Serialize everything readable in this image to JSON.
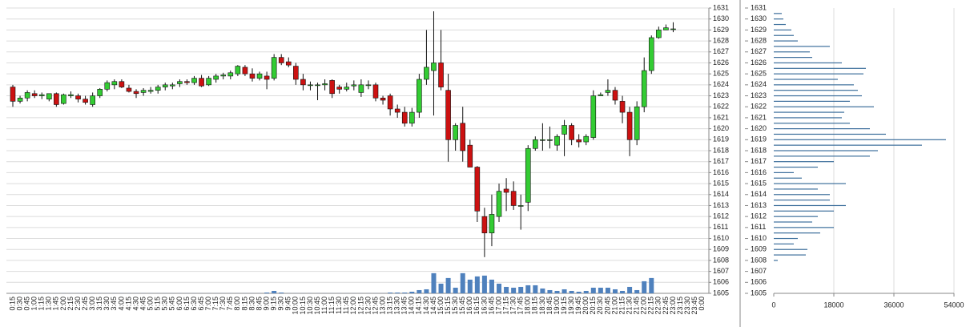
{
  "chart_data": [
    {
      "type": "candlestick",
      "categories": [
        "0:15",
        "0:30",
        "0:45",
        "1:00",
        "1:15",
        "1:30",
        "1:45",
        "2:00",
        "2:15",
        "2:30",
        "2:45",
        "3:00",
        "3:15",
        "3:30",
        "3:45",
        "4:00",
        "4:15",
        "4:30",
        "4:45",
        "5:00",
        "5:15",
        "5:30",
        "5:45",
        "6:00",
        "6:15",
        "6:30",
        "6:45",
        "7:00",
        "7:15",
        "7:30",
        "7:45",
        "8:00",
        "8:15",
        "8:30",
        "8:45",
        "9:00",
        "9:15",
        "9:30",
        "9:45",
        "10:00",
        "10:15",
        "10:30",
        "10:45",
        "11:00",
        "11:15",
        "11:30",
        "11:45",
        "12:00",
        "12:15",
        "12:30",
        "12:45",
        "13:00",
        "13:15",
        "13:30",
        "13:45",
        "14:00",
        "14:15",
        "14:30",
        "14:45",
        "15:00",
        "15:15",
        "15:30",
        "15:45",
        "16:00",
        "16:15",
        "16:30",
        "16:45",
        "17:00",
        "17:15",
        "17:30",
        "17:45",
        "18:00",
        "18:15",
        "18:30",
        "18:45",
        "19:00",
        "19:15",
        "19:30",
        "19:45",
        "20:00",
        "20:15",
        "20:30",
        "20:45",
        "21:00",
        "21:15",
        "21:30",
        "21:45",
        "22:00",
        "22:15",
        "22:30",
        "22:45",
        "23:00",
        "23:15",
        "23:30",
        "23:45",
        "0:00"
      ],
      "open": [
        1623.8,
        1622.5,
        1622.8,
        1623.2,
        1623.0,
        1622.7,
        1623.2,
        1622.3,
        1623.0,
        1623.0,
        1622.7,
        1622.2,
        1623.0,
        1623.6,
        1624.0,
        1624.3,
        1623.7,
        1623.4,
        1623.3,
        1623.4,
        1623.5,
        1623.8,
        1623.9,
        1624.1,
        1624.3,
        1624.2,
        1624.6,
        1624.0,
        1624.5,
        1624.8,
        1624.8,
        1625.0,
        1625.6,
        1625.0,
        1624.6,
        1624.8,
        1624.6,
        1626.5,
        1626.1,
        1625.7,
        1624.5,
        1624.0,
        1624.0,
        1624.0,
        1624.4,
        1623.8,
        1623.6,
        1623.9,
        1623.3,
        1624.0,
        1624.0,
        1622.8,
        1623.0,
        1621.8,
        1621.5,
        1620.5,
        1621.5,
        1624.5,
        1625.3,
        1626.0,
        1623.5,
        1619.0,
        1620.5,
        1618.5,
        1616.5,
        1612.0,
        1610.5,
        1612.0,
        1614.5,
        1614.3,
        1613.0,
        1613.3,
        1618.2,
        1619.0,
        1619.0,
        1618.5,
        1619.5,
        1620.3,
        1619.0,
        1618.8,
        1619.2,
        1623.0,
        1623.3,
        1623.5,
        1622.5,
        1621.5,
        1619.0,
        1622.0,
        1625.3,
        1628.3,
        1629.0,
        1629.1,
        null,
        null,
        null,
        null
      ],
      "high": [
        1624.0,
        1623.0,
        1623.5,
        1623.5,
        1623.3,
        1623.2,
        1623.3,
        1623.2,
        1623.4,
        1623.2,
        1623.0,
        1623.3,
        1623.7,
        1624.4,
        1624.5,
        1624.5,
        1624.0,
        1623.6,
        1623.7,
        1623.8,
        1624.0,
        1624.2,
        1624.2,
        1624.5,
        1624.5,
        1624.8,
        1624.9,
        1624.8,
        1625.0,
        1625.1,
        1625.3,
        1625.8,
        1625.8,
        1625.5,
        1625.2,
        1625.2,
        1626.8,
        1626.8,
        1626.5,
        1626.0,
        1625.0,
        1624.3,
        1624.2,
        1624.5,
        1624.5,
        1624.0,
        1624.2,
        1624.4,
        1624.5,
        1624.4,
        1624.2,
        1623.0,
        1623.2,
        1622.2,
        1622.0,
        1621.9,
        1625.0,
        1629.0,
        1630.7,
        1629.0,
        1625.0,
        1620.5,
        1622.0,
        1619.0,
        1616.6,
        1612.8,
        1614.0,
        1615.0,
        1615.5,
        1615.2,
        1614.0,
        1618.5,
        1619.3,
        1620.5,
        1620.2,
        1619.5,
        1620.8,
        1620.5,
        1619.5,
        1619.5,
        1623.5,
        1623.3,
        1624.5,
        1623.8,
        1623.0,
        1622.0,
        1622.5,
        1626.5,
        1628.5,
        1629.3,
        1629.5,
        1629.7,
        null,
        null,
        null,
        null
      ],
      "low": [
        1622.0,
        1622.3,
        1622.5,
        1622.8,
        1622.7,
        1622.5,
        1622.0,
        1622.2,
        1622.8,
        1622.4,
        1622.2,
        1622.0,
        1622.8,
        1623.4,
        1623.6,
        1623.7,
        1623.3,
        1622.8,
        1623.0,
        1623.2,
        1623.2,
        1623.5,
        1623.6,
        1623.8,
        1624.0,
        1624.0,
        1623.8,
        1623.9,
        1624.2,
        1624.5,
        1624.5,
        1624.8,
        1624.8,
        1624.3,
        1624.4,
        1623.6,
        1624.4,
        1625.8,
        1625.6,
        1624.0,
        1623.5,
        1623.5,
        1622.6,
        1623.5,
        1622.8,
        1623.2,
        1623.4,
        1623.5,
        1622.9,
        1623.6,
        1622.5,
        1622.2,
        1621.2,
        1621.0,
        1620.2,
        1620.2,
        1621.0,
        1624.0,
        1621.2,
        1623.5,
        1617.0,
        1618.0,
        1617.0,
        1616.5,
        1611.5,
        1608.3,
        1609.3,
        1611.5,
        1612.5,
        1612.6,
        1610.8,
        1612.5,
        1618.0,
        1618.0,
        1618.2,
        1618.0,
        1617.5,
        1618.5,
        1618.3,
        1618.5,
        1619.0,
        1623.0,
        1623.0,
        1622.2,
        1620.5,
        1617.5,
        1618.5,
        1621.5,
        1625.0,
        1628.2,
        1629.0,
        1628.8,
        null,
        null,
        null,
        null
      ],
      "close": [
        1622.5,
        1622.8,
        1623.3,
        1623.0,
        1623.1,
        1623.2,
        1622.2,
        1623.1,
        1623.1,
        1622.7,
        1622.4,
        1623.0,
        1623.6,
        1624.2,
        1624.3,
        1623.8,
        1623.4,
        1623.2,
        1623.5,
        1623.5,
        1623.8,
        1624.0,
        1624.0,
        1624.3,
        1624.2,
        1624.6,
        1623.9,
        1624.6,
        1624.8,
        1624.9,
        1625.1,
        1625.7,
        1625.0,
        1624.6,
        1625.0,
        1624.5,
        1626.5,
        1626.0,
        1625.8,
        1624.5,
        1624.0,
        1624.0,
        1624.0,
        1624.1,
        1623.2,
        1623.6,
        1623.8,
        1624.0,
        1624.0,
        1624.0,
        1622.8,
        1622.6,
        1621.8,
        1621.5,
        1620.5,
        1621.5,
        1624.5,
        1625.6,
        1626.0,
        1623.8,
        1619.0,
        1620.3,
        1618.0,
        1616.5,
        1612.5,
        1610.5,
        1612.2,
        1614.3,
        1614.2,
        1613.0,
        1613.0,
        1618.2,
        1619.0,
        1619.0,
        1619.0,
        1619.3,
        1620.3,
        1619.0,
        1618.8,
        1619.3,
        1623.0,
        1623.1,
        1623.5,
        1622.6,
        1621.5,
        1619.0,
        1622.0,
        1625.3,
        1628.3,
        1629.0,
        1629.2,
        1629.1,
        null,
        null,
        null,
        null
      ],
      "volume": [
        300,
        300,
        300,
        300,
        300,
        300,
        300,
        300,
        300,
        300,
        300,
        300,
        300,
        300,
        300,
        300,
        300,
        300,
        300,
        300,
        300,
        300,
        300,
        300,
        300,
        300,
        300,
        300,
        300,
        300,
        300,
        300,
        300,
        300,
        300,
        2400,
        7200,
        2400,
        300,
        300,
        300,
        300,
        300,
        300,
        300,
        300,
        300,
        300,
        300,
        300,
        300,
        300,
        2400,
        2400,
        2400,
        4800,
        9600,
        12000,
        60000,
        28800,
        45600,
        16800,
        60000,
        40800,
        50400,
        52800,
        40800,
        28800,
        19200,
        16800,
        19200,
        24000,
        24000,
        14400,
        9600,
        7200,
        12000,
        7200,
        4800,
        7200,
        16800,
        16800,
        16800,
        12000,
        7200,
        19200,
        9600,
        36000,
        45600,
        0,
        0,
        0,
        null,
        null,
        null,
        null
      ],
      "up_color": "#33cc33",
      "down_color": "#cc1111",
      "volume_color": "#4f81bd",
      "volume_lim": [
        0,
        850000
      ],
      "ylim": [
        1605,
        1631
      ],
      "yticks": [
        1605,
        1606,
        1607,
        1608,
        1609,
        1610,
        1611,
        1612,
        1613,
        1614,
        1615,
        1616,
        1617,
        1618,
        1619,
        1620,
        1621,
        1622,
        1623,
        1624,
        1625,
        1626,
        1627,
        1628,
        1629,
        1630,
        1631
      ],
      "grid": true
    },
    {
      "type": "barh",
      "levels": [
        1608,
        1608.5,
        1609,
        1609.5,
        1610,
        1610.5,
        1611,
        1611.5,
        1612,
        1612.5,
        1613,
        1613.5,
        1614,
        1614.5,
        1615,
        1615.5,
        1616,
        1616.5,
        1617,
        1617.5,
        1618,
        1618.5,
        1619,
        1619.5,
        1620,
        1620.5,
        1621,
        1621.5,
        1622,
        1622.5,
        1623,
        1623.5,
        1624,
        1624.5,
        1625,
        1625.5,
        1626,
        1626.5,
        1627,
        1627.5,
        1628,
        1628.5,
        1629,
        1629.5,
        1630,
        1630.5
      ],
      "values": [
        1200,
        9600,
        10080,
        6000,
        7200,
        13920,
        18000,
        11520,
        13200,
        18000,
        21600,
        16800,
        16800,
        13200,
        21600,
        8400,
        6000,
        13200,
        18000,
        28800,
        31200,
        44400,
        51600,
        33600,
        28800,
        22800,
        20400,
        21120,
        30000,
        22800,
        26400,
        25200,
        24000,
        19200,
        26880,
        27600,
        20400,
        11520,
        10800,
        16800,
        7200,
        6000,
        5280,
        3600,
        2880,
        2400
      ],
      "color": "#3d6f9c",
      "xlim": [
        0,
        54000
      ],
      "xticks": [
        0,
        18000,
        36000,
        54000
      ],
      "ylim": [
        1605,
        1631
      ],
      "yticks": [
        1605,
        1606,
        1607,
        1608,
        1609,
        1610,
        1611,
        1612,
        1613,
        1614,
        1615,
        1616,
        1617,
        1618,
        1619,
        1620,
        1621,
        1622,
        1623,
        1624,
        1625,
        1626,
        1627,
        1628,
        1629,
        1630,
        1631
      ],
      "grid": true
    }
  ]
}
